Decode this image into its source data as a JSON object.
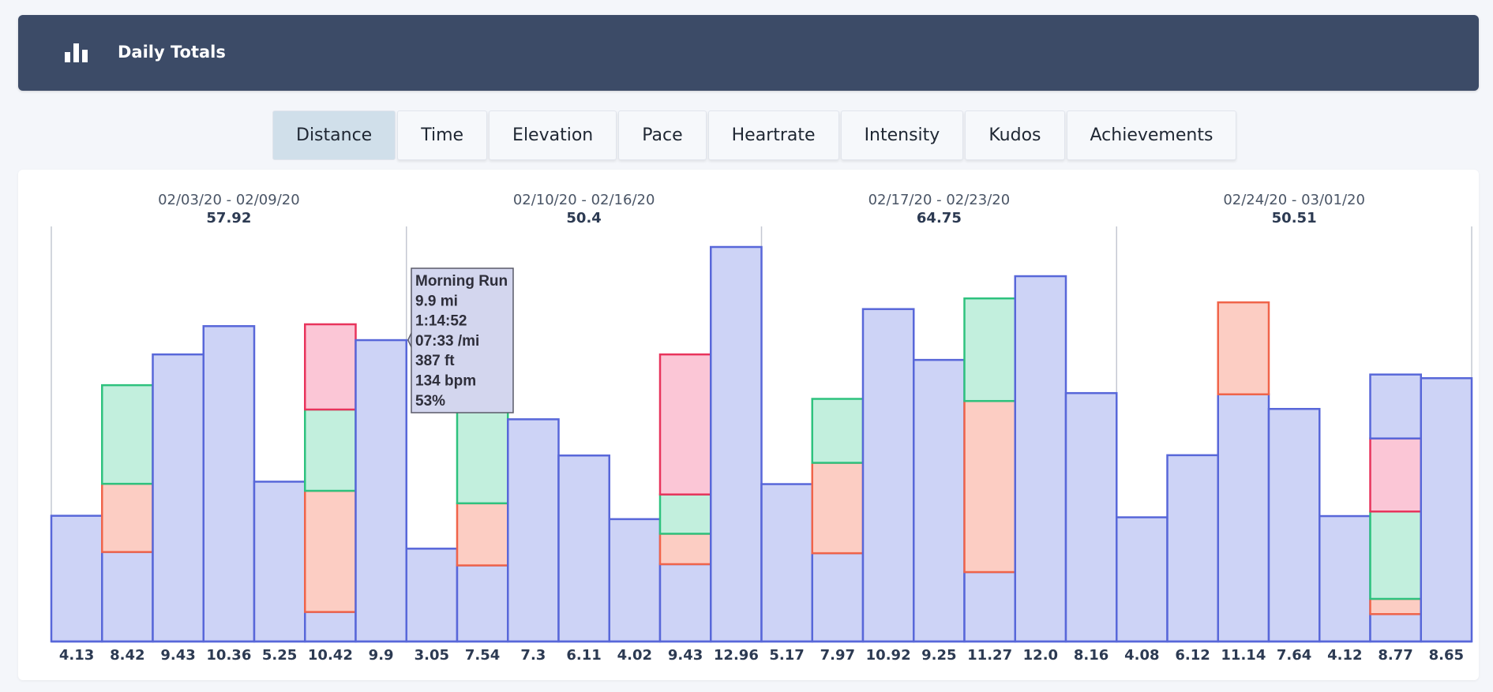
{
  "header": {
    "title": "Daily Totals",
    "icon": "bar-chart-icon"
  },
  "tabs": [
    {
      "label": "Distance",
      "active": true
    },
    {
      "label": "Time",
      "active": false
    },
    {
      "label": "Elevation",
      "active": false
    },
    {
      "label": "Pace",
      "active": false
    },
    {
      "label": "Heartrate",
      "active": false
    },
    {
      "label": "Intensity",
      "active": false
    },
    {
      "label": "Kudos",
      "active": false
    },
    {
      "label": "Achievements",
      "active": false
    }
  ],
  "colors": {
    "base_fill": "#cdd3f6",
    "base_stroke": "#5867d9",
    "green_fill": "#c2efdd",
    "green_stroke": "#2ec27e",
    "orange_fill": "#fccdc3",
    "orange_stroke": "#f0644a",
    "pink_fill": "#fbc6d6",
    "pink_stroke": "#e8345c"
  },
  "chart_data": {
    "type": "bar",
    "stacked": true,
    "ylim": [
      0,
      13.5
    ],
    "weeks": [
      {
        "range": "02/03/20 - 02/09/20",
        "total": "57.92"
      },
      {
        "range": "02/10/20 - 02/16/20",
        "total": "50.4"
      },
      {
        "range": "02/17/20 - 02/23/20",
        "total": "64.75"
      },
      {
        "range": "02/24/20 - 03/01/20",
        "total": "50.51"
      }
    ],
    "categories": [
      "4.13",
      "8.42",
      "9.43",
      "10.36",
      "5.25",
      "10.42",
      "9.9",
      "3.05",
      "7.54",
      "7.3",
      "6.11",
      "4.02",
      "9.43",
      "12.96",
      "5.17",
      "7.97",
      "10.92",
      "9.25",
      "11.27",
      "12.0",
      "8.16",
      "4.08",
      "6.12",
      "11.14",
      "7.64",
      "4.12",
      "8.77",
      "8.65"
    ],
    "days": [
      {
        "total": 4.13,
        "segments": [
          {
            "color": "base",
            "value": 4.13
          }
        ]
      },
      {
        "total": 8.42,
        "segments": [
          {
            "color": "base",
            "value": 2.94
          },
          {
            "color": "orange",
            "value": 2.24
          },
          {
            "color": "green",
            "value": 3.24
          }
        ]
      },
      {
        "total": 9.43,
        "segments": [
          {
            "color": "base",
            "value": 9.43
          }
        ]
      },
      {
        "total": 10.36,
        "segments": [
          {
            "color": "base",
            "value": 10.36
          }
        ]
      },
      {
        "total": 5.25,
        "segments": [
          {
            "color": "base",
            "value": 5.25
          }
        ]
      },
      {
        "total": 10.42,
        "segments": [
          {
            "color": "base",
            "value": 0.97
          },
          {
            "color": "orange",
            "value": 3.98
          },
          {
            "color": "green",
            "value": 2.67
          },
          {
            "color": "pink",
            "value": 2.8
          }
        ]
      },
      {
        "total": 9.9,
        "segments": [
          {
            "color": "base",
            "value": 9.9
          }
        ]
      },
      {
        "total": 3.05,
        "segments": [
          {
            "color": "base",
            "value": 3.05
          }
        ]
      },
      {
        "total": 7.54,
        "segments": [
          {
            "color": "base",
            "value": 2.5
          },
          {
            "color": "orange",
            "value": 2.04
          },
          {
            "color": "green",
            "value": 3.0
          }
        ]
      },
      {
        "total": 7.3,
        "segments": [
          {
            "color": "base",
            "value": 7.3
          }
        ]
      },
      {
        "total": 6.11,
        "segments": [
          {
            "color": "base",
            "value": 6.11
          }
        ]
      },
      {
        "total": 4.02,
        "segments": [
          {
            "color": "base",
            "value": 4.02
          }
        ]
      },
      {
        "total": 9.43,
        "segments": [
          {
            "color": "base",
            "value": 2.54
          },
          {
            "color": "orange",
            "value": 1.0
          },
          {
            "color": "green",
            "value": 1.29
          },
          {
            "color": "pink",
            "value": 4.6
          }
        ]
      },
      {
        "total": 12.96,
        "segments": [
          {
            "color": "base",
            "value": 12.96
          }
        ]
      },
      {
        "total": 5.17,
        "segments": [
          {
            "color": "base",
            "value": 5.17
          }
        ]
      },
      {
        "total": 7.97,
        "segments": [
          {
            "color": "base",
            "value": 2.9
          },
          {
            "color": "orange",
            "value": 2.97
          },
          {
            "color": "green",
            "value": 2.1
          }
        ]
      },
      {
        "total": 10.92,
        "segments": [
          {
            "color": "base",
            "value": 10.92
          }
        ]
      },
      {
        "total": 9.25,
        "segments": [
          {
            "color": "base",
            "value": 9.25
          }
        ]
      },
      {
        "total": 11.27,
        "segments": [
          {
            "color": "base",
            "value": 2.28
          },
          {
            "color": "orange",
            "value": 5.62
          },
          {
            "color": "green",
            "value": 3.37
          }
        ]
      },
      {
        "total": 12.0,
        "segments": [
          {
            "color": "base",
            "value": 12.0
          }
        ]
      },
      {
        "total": 8.16,
        "segments": [
          {
            "color": "base",
            "value": 8.16
          }
        ]
      },
      {
        "total": 4.08,
        "segments": [
          {
            "color": "base",
            "value": 4.08
          }
        ]
      },
      {
        "total": 6.12,
        "segments": [
          {
            "color": "base",
            "value": 6.12
          }
        ]
      },
      {
        "total": 11.14,
        "segments": [
          {
            "color": "base",
            "value": 8.12
          },
          {
            "color": "orange",
            "value": 3.02
          }
        ]
      },
      {
        "total": 7.64,
        "segments": [
          {
            "color": "base",
            "value": 7.64
          }
        ]
      },
      {
        "total": 4.12,
        "segments": [
          {
            "color": "base",
            "value": 4.12
          }
        ]
      },
      {
        "total": 8.77,
        "segments": [
          {
            "color": "base",
            "value": 0.9
          },
          {
            "color": "orange",
            "value": 0.5
          },
          {
            "color": "green",
            "value": 2.87
          },
          {
            "color": "pink",
            "value": 2.4
          },
          {
            "color": "base",
            "value": 2.1
          }
        ]
      },
      {
        "total": 8.65,
        "segments": [
          {
            "color": "base",
            "value": 8.65
          }
        ]
      }
    ],
    "tooltip": {
      "day_index": 6,
      "lines": [
        "Morning Run",
        "9.9 mi",
        "1:14:52",
        "07:33 /mi",
        "387 ft",
        "134 bpm",
        "53%"
      ]
    }
  }
}
